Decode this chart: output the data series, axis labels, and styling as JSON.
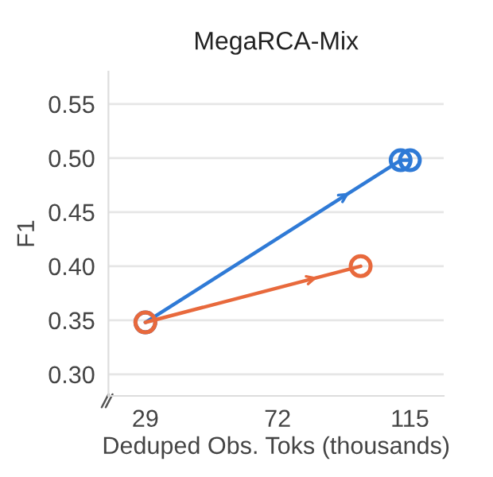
{
  "chart_data": {
    "type": "line",
    "title": "MegaRCA-Mix",
    "xlabel": "Deduped Obs. Toks (thousands)",
    "ylabel": "F1",
    "series": [
      {
        "color": "#2f7ad6",
        "x": [
          29,
          112,
          115
        ],
        "values": [
          0.348,
          0.498,
          0.498
        ]
      },
      {
        "color": "#e8693c",
        "x": [
          29,
          99
        ],
        "values": [
          0.348,
          0.4
        ]
      }
    ],
    "xlim": [
      17,
      126
    ],
    "xticks": [
      29,
      72,
      115
    ],
    "ylim": [
      0.28,
      0.58
    ],
    "yticks": [
      {
        "value": 0.3,
        "label": "0.30"
      },
      {
        "value": 0.35,
        "label": "0.35"
      },
      {
        "value": 0.4,
        "label": "0.40"
      },
      {
        "value": 0.45,
        "label": "0.45"
      },
      {
        "value": 0.5,
        "label": "0.50"
      },
      {
        "value": 0.55,
        "label": "0.55"
      }
    ],
    "grid": "y",
    "marker": "circle",
    "line_style": "solid",
    "legend": false
  }
}
